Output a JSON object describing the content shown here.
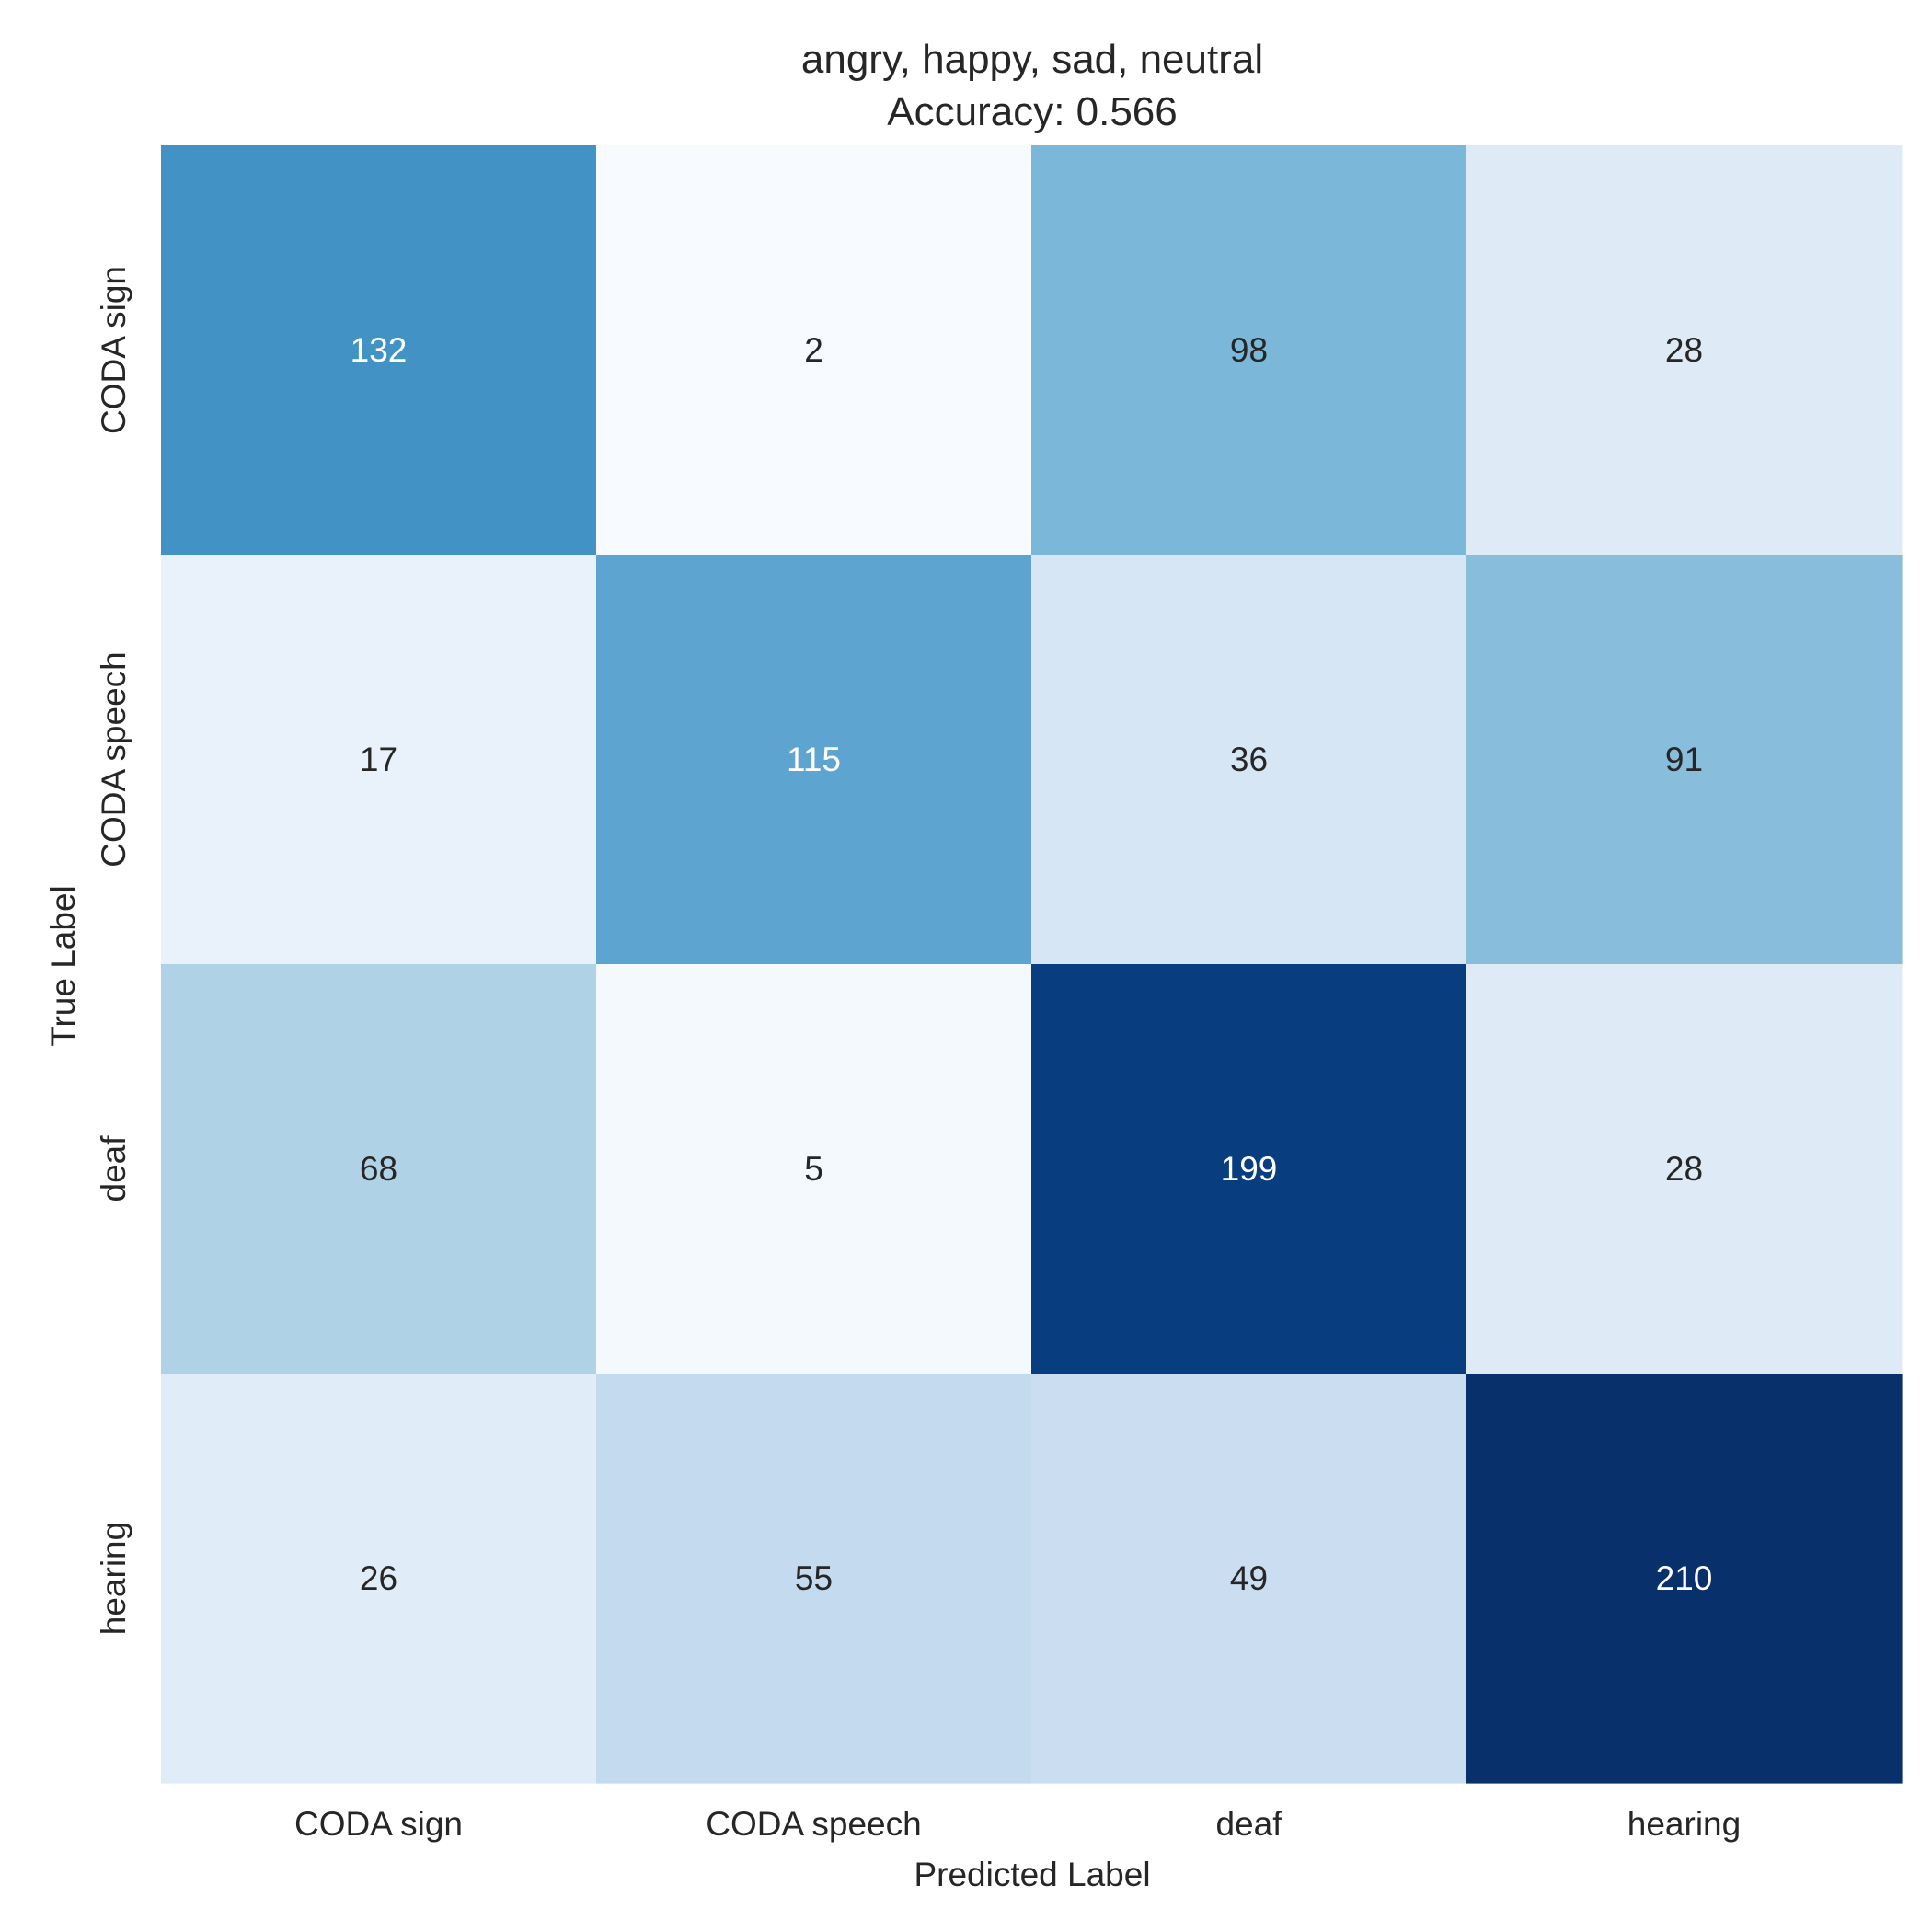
{
  "chart_data": {
    "type": "heatmap",
    "title": "angry, happy, sad, neutral",
    "subtitle": "Accuracy: 0.566",
    "xlabel": "Predicted Label",
    "ylabel": "True Label",
    "x_categories": [
      "CODA sign",
      "CODA speech",
      "deaf",
      "hearing"
    ],
    "y_categories": [
      "CODA sign",
      "CODA speech",
      "deaf",
      "hearing"
    ],
    "values": [
      [
        132,
        2,
        98,
        28
      ],
      [
        17,
        115,
        36,
        91
      ],
      [
        68,
        5,
        199,
        28
      ],
      [
        26,
        55,
        49,
        210
      ]
    ],
    "colormap": "Blues",
    "color_range": [
      2,
      210
    ],
    "colorbar": false,
    "grid": false
  }
}
